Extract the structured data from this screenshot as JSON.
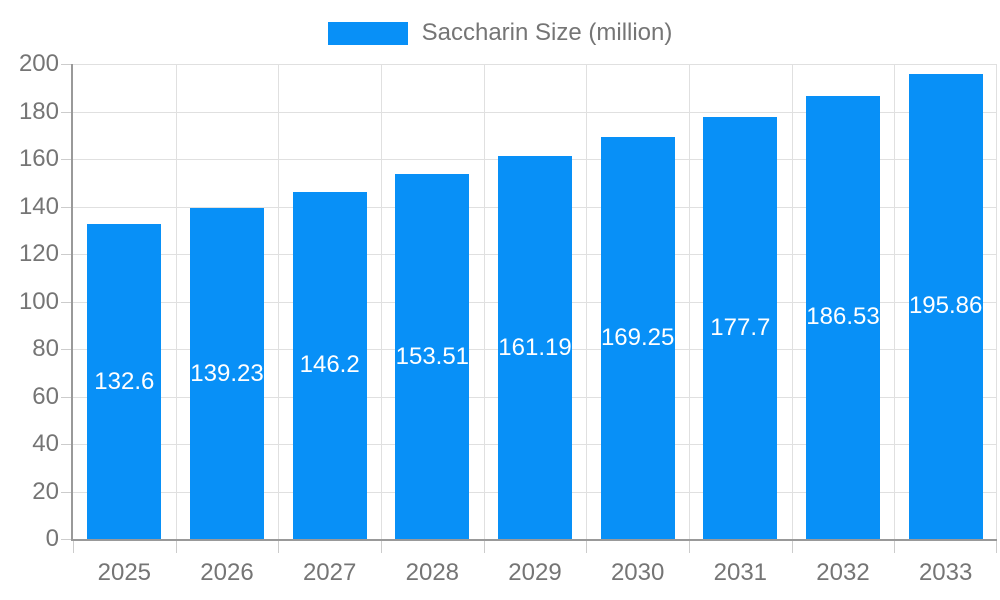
{
  "chart_data": {
    "type": "bar",
    "title": "",
    "legend": "Saccharin Size (million)",
    "categories": [
      "2025",
      "2026",
      "2027",
      "2028",
      "2029",
      "2030",
      "2031",
      "2032",
      "2033"
    ],
    "values": [
      132.6,
      139.23,
      146.2,
      153.51,
      161.19,
      169.25,
      177.7,
      186.53,
      195.86
    ],
    "xlabel": "",
    "ylabel": "",
    "ylim": [
      0,
      200
    ],
    "ytick_step": 20,
    "grid": true,
    "legend_position": "top",
    "colors": {
      "bar": "#0890F7",
      "grid": "#e0e0e0",
      "axis": "#999999",
      "tick_mark": "#cccccc",
      "axis_text": "#757575",
      "legend_text": "#757575",
      "bar_label": "#ffffff",
      "background": "#ffffff"
    }
  }
}
